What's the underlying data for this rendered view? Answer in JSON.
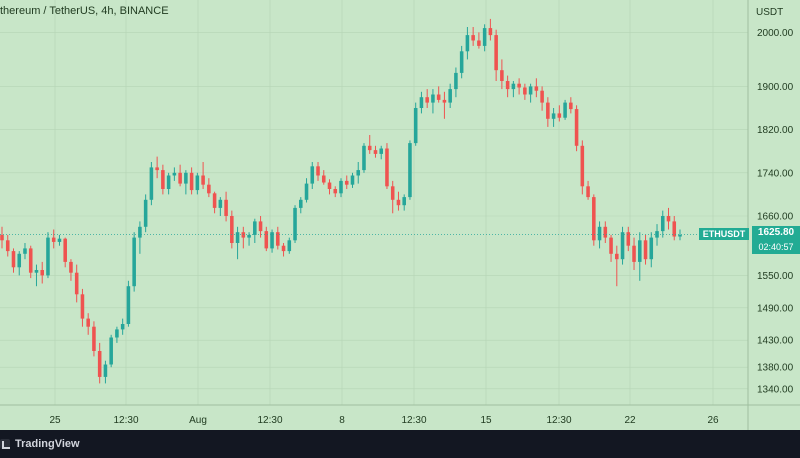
{
  "header": {
    "title": "thereum / TetherUS, 4h, BINANCE"
  },
  "footer": {
    "brand": "TradingView"
  },
  "price_scale": {
    "currency": "USDT"
  },
  "current": {
    "symbol": "ETHUSDT",
    "price": "1625.80",
    "countdown": "02:40:57"
  },
  "colors": {
    "background": "#c8e6c8",
    "up": "#26a69a",
    "down": "#ef5350",
    "grid": "#b5d4b5",
    "axis_text": "#1f3a1f",
    "footer": "#131722"
  },
  "chart_data": {
    "type": "candlestick",
    "symbol": "ETHUSDT",
    "timeframe": "4h",
    "exchange": "BINANCE",
    "y_axis": {
      "ticks": [
        "2000.00",
        "1900.00",
        "1820.00",
        "1740.00",
        "1660.00",
        "1550.00",
        "1490.00",
        "1430.00",
        "1380.00",
        "1340.00"
      ],
      "ylim": [
        1310,
        2060
      ]
    },
    "x_axis": {
      "ticks": [
        "25",
        "12:30",
        "Aug",
        "12:30",
        "8",
        "12:30",
        "15",
        "12:30",
        "22",
        "26"
      ]
    },
    "last_price": 1625.8,
    "candles": [
      [
        1625,
        1640,
        1600,
        1615
      ],
      [
        1615,
        1625,
        1585,
        1595
      ],
      [
        1595,
        1600,
        1555,
        1565
      ],
      [
        1565,
        1595,
        1550,
        1590
      ],
      [
        1590,
        1610,
        1580,
        1600
      ],
      [
        1600,
        1605,
        1545,
        1555
      ],
      [
        1555,
        1570,
        1530,
        1560
      ],
      [
        1560,
        1575,
        1535,
        1550
      ],
      [
        1550,
        1630,
        1545,
        1620
      ],
      [
        1620,
        1635,
        1600,
        1612
      ],
      [
        1612,
        1625,
        1605,
        1618
      ],
      [
        1618,
        1620,
        1565,
        1575
      ],
      [
        1575,
        1580,
        1540,
        1555
      ],
      [
        1555,
        1570,
        1500,
        1515
      ],
      [
        1515,
        1525,
        1455,
        1470
      ],
      [
        1470,
        1480,
        1440,
        1455
      ],
      [
        1455,
        1465,
        1400,
        1410
      ],
      [
        1410,
        1425,
        1350,
        1362
      ],
      [
        1362,
        1392,
        1350,
        1385
      ],
      [
        1385,
        1440,
        1380,
        1435
      ],
      [
        1435,
        1455,
        1425,
        1450
      ],
      [
        1450,
        1470,
        1440,
        1460
      ],
      [
        1460,
        1540,
        1455,
        1530
      ],
      [
        1530,
        1630,
        1520,
        1620
      ],
      [
        1620,
        1650,
        1590,
        1640
      ],
      [
        1640,
        1700,
        1630,
        1690
      ],
      [
        1690,
        1760,
        1680,
        1750
      ],
      [
        1750,
        1770,
        1730,
        1745
      ],
      [
        1745,
        1755,
        1700,
        1710
      ],
      [
        1710,
        1740,
        1700,
        1735
      ],
      [
        1735,
        1750,
        1725,
        1740
      ],
      [
        1740,
        1755,
        1715,
        1720
      ],
      [
        1720,
        1745,
        1700,
        1740
      ],
      [
        1740,
        1750,
        1700,
        1708
      ],
      [
        1708,
        1740,
        1700,
        1735
      ],
      [
        1735,
        1760,
        1710,
        1718
      ],
      [
        1718,
        1730,
        1695,
        1702
      ],
      [
        1702,
        1705,
        1665,
        1675
      ],
      [
        1675,
        1695,
        1660,
        1690
      ],
      [
        1690,
        1705,
        1650,
        1660
      ],
      [
        1660,
        1670,
        1600,
        1610
      ],
      [
        1610,
        1640,
        1580,
        1630
      ],
      [
        1630,
        1640,
        1600,
        1620
      ],
      [
        1620,
        1630,
        1605,
        1625
      ],
      [
        1625,
        1655,
        1610,
        1650
      ],
      [
        1650,
        1660,
        1620,
        1632
      ],
      [
        1632,
        1640,
        1595,
        1600
      ],
      [
        1600,
        1635,
        1592,
        1630
      ],
      [
        1630,
        1640,
        1598,
        1605
      ],
      [
        1605,
        1610,
        1585,
        1595
      ],
      [
        1595,
        1620,
        1590,
        1615
      ],
      [
        1615,
        1680,
        1610,
        1675
      ],
      [
        1675,
        1695,
        1665,
        1690
      ],
      [
        1690,
        1730,
        1685,
        1720
      ],
      [
        1720,
        1760,
        1710,
        1752
      ],
      [
        1752,
        1760,
        1725,
        1735
      ],
      [
        1735,
        1745,
        1718,
        1722
      ],
      [
        1722,
        1728,
        1700,
        1710
      ],
      [
        1710,
        1715,
        1695,
        1702
      ],
      [
        1702,
        1730,
        1695,
        1725
      ],
      [
        1725,
        1735,
        1710,
        1718
      ],
      [
        1718,
        1740,
        1712,
        1735
      ],
      [
        1735,
        1760,
        1720,
        1745
      ],
      [
        1745,
        1795,
        1740,
        1790
      ],
      [
        1790,
        1810,
        1775,
        1782
      ],
      [
        1782,
        1790,
        1768,
        1775
      ],
      [
        1775,
        1790,
        1765,
        1785
      ],
      [
        1785,
        1795,
        1710,
        1715
      ],
      [
        1715,
        1725,
        1665,
        1690
      ],
      [
        1690,
        1705,
        1670,
        1680
      ],
      [
        1680,
        1700,
        1670,
        1695
      ],
      [
        1695,
        1800,
        1690,
        1795
      ],
      [
        1795,
        1870,
        1790,
        1860
      ],
      [
        1860,
        1890,
        1850,
        1880
      ],
      [
        1880,
        1895,
        1860,
        1870
      ],
      [
        1870,
        1895,
        1850,
        1885
      ],
      [
        1885,
        1900,
        1870,
        1875
      ],
      [
        1875,
        1890,
        1840,
        1870
      ],
      [
        1870,
        1905,
        1860,
        1895
      ],
      [
        1895,
        1935,
        1880,
        1925
      ],
      [
        1925,
        1975,
        1915,
        1965
      ],
      [
        1965,
        2010,
        1950,
        1995
      ],
      [
        1995,
        2010,
        1975,
        1985
      ],
      [
        1985,
        2000,
        1970,
        1975
      ],
      [
        1975,
        2015,
        1965,
        2008
      ],
      [
        2008,
        2025,
        1985,
        1995
      ],
      [
        1995,
        2005,
        1910,
        1930
      ],
      [
        1930,
        1950,
        1895,
        1910
      ],
      [
        1910,
        1920,
        1880,
        1895
      ],
      [
        1895,
        1910,
        1880,
        1905
      ],
      [
        1905,
        1915,
        1885,
        1898
      ],
      [
        1898,
        1905,
        1875,
        1885
      ],
      [
        1885,
        1905,
        1870,
        1900
      ],
      [
        1900,
        1915,
        1880,
        1892
      ],
      [
        1892,
        1900,
        1855,
        1870
      ],
      [
        1870,
        1880,
        1825,
        1840
      ],
      [
        1840,
        1860,
        1825,
        1850
      ],
      [
        1850,
        1865,
        1835,
        1842
      ],
      [
        1842,
        1875,
        1838,
        1870
      ],
      [
        1870,
        1880,
        1850,
        1858
      ],
      [
        1858,
        1865,
        1780,
        1790
      ],
      [
        1790,
        1800,
        1700,
        1715
      ],
      [
        1715,
        1725,
        1690,
        1695
      ],
      [
        1695,
        1700,
        1605,
        1615
      ],
      [
        1615,
        1650,
        1600,
        1640
      ],
      [
        1640,
        1650,
        1610,
        1620
      ],
      [
        1620,
        1625,
        1575,
        1590
      ],
      [
        1590,
        1605,
        1530,
        1580
      ],
      [
        1580,
        1640,
        1570,
        1630
      ],
      [
        1630,
        1640,
        1595,
        1605
      ],
      [
        1605,
        1620,
        1560,
        1575
      ],
      [
        1575,
        1630,
        1540,
        1615
      ],
      [
        1615,
        1625,
        1570,
        1580
      ],
      [
        1580,
        1630,
        1565,
        1620
      ],
      [
        1620,
        1645,
        1605,
        1632
      ],
      [
        1632,
        1670,
        1620,
        1660
      ],
      [
        1660,
        1675,
        1635,
        1650
      ],
      [
        1650,
        1660,
        1615,
        1622
      ],
      [
        1622,
        1635,
        1615,
        1625
      ]
    ]
  }
}
